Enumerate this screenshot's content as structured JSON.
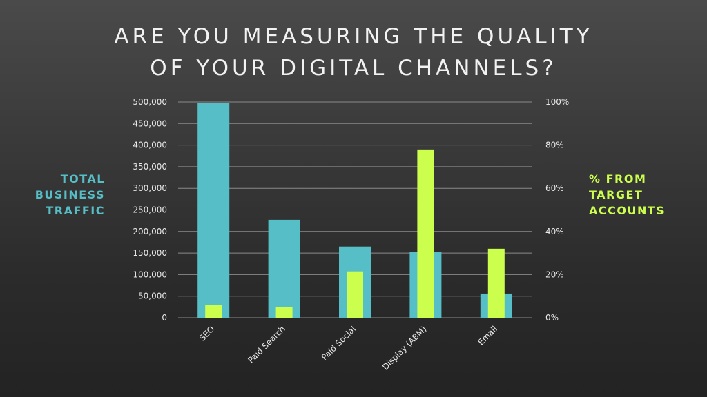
{
  "title": {
    "line1": "Are you measuring the quality",
    "line2": "of your digital channels?"
  },
  "left_axis_title": {
    "line1": "Total",
    "line2": "Business",
    "line3": "Traffic"
  },
  "right_axis_title": {
    "line1": "% from",
    "line2": "Target",
    "line3": "Accounts"
  },
  "colors": {
    "traffic": "#56bec6",
    "target": "#ccff4d",
    "grid": "#8a8a8a",
    "axis_text": "#e8e8e8"
  },
  "chart_data": {
    "type": "bar",
    "categories": [
      "SEO",
      "Paid Search",
      "Paid Social",
      "Display (ABM)",
      "Email"
    ],
    "series": [
      {
        "name": "Total Business Traffic",
        "axis": "left",
        "values": [
          497000,
          227000,
          165000,
          152000,
          56000
        ]
      },
      {
        "name": "% from Target Accounts",
        "axis": "right",
        "values": [
          6,
          5,
          21.5,
          78,
          32
        ]
      }
    ],
    "left_axis": {
      "ylim": [
        0,
        500000
      ],
      "ticks": [
        "0",
        "50,000",
        "100,000",
        "150,000",
        "200,000",
        "250,000",
        "300,000",
        "350,000",
        "400,000",
        "450,000",
        "500,000"
      ]
    },
    "right_axis": {
      "ylim": [
        0,
        100
      ],
      "ticks": [
        "0%",
        "20%",
        "40%",
        "60%",
        "80%",
        "100%"
      ]
    },
    "grid": true,
    "legend": "none"
  }
}
